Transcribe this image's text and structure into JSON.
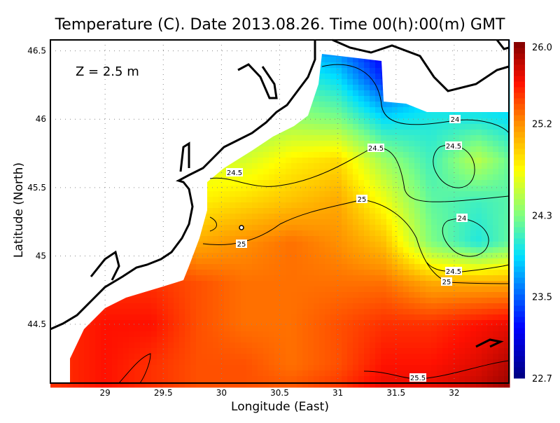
{
  "chart_data": {
    "type": "heatmap",
    "title": "Temperature (C). Date 2013.08.26. Time 00(h):00(m) GMT",
    "annotation": "Z = 2.5 m",
    "xlabel": "Longitude (East)",
    "ylabel": "Latitude (North)",
    "xlim": [
      28.53,
      32.47
    ],
    "ylim": [
      44.07,
      46.58
    ],
    "xticks": [
      29,
      29.5,
      30,
      30.5,
      31,
      31.5,
      32
    ],
    "xtick_labels": [
      "29",
      "29.5",
      "30",
      "30.5",
      "31",
      "31.5",
      "32"
    ],
    "yticks": [
      44.5,
      45,
      45.5,
      46,
      46.5
    ],
    "ytick_labels": [
      "44.5",
      "45",
      "45.5",
      "46",
      "46.5"
    ],
    "grid": true,
    "colorbar": {
      "min": 22.7,
      "max": 26.0,
      "tick_labels": [
        "26.0",
        "25.2",
        "24.3",
        "23.5",
        "22.7"
      ],
      "ticks": [
        26.0,
        25.2,
        24.3,
        23.5,
        22.7
      ],
      "stops": [
        [
          22.7,
          "#00007f"
        ],
        [
          23.2,
          "#0000ff"
        ],
        [
          23.9,
          "#00e0ff"
        ],
        [
          24.3,
          "#80ff80"
        ],
        [
          24.75,
          "#ffff00"
        ],
        [
          25.2,
          "#ff9000"
        ],
        [
          25.6,
          "#ff1000"
        ],
        [
          26.0,
          "#7f0000"
        ]
      ]
    },
    "grid_lons": [
      28.6,
      29.0,
      29.4,
      29.8,
      30.2,
      30.6,
      31.0,
      31.4,
      31.8,
      32.2,
      32.6
    ],
    "grid_lats": [
      44.0,
      44.2,
      44.5,
      44.8,
      45.1,
      45.4,
      45.7,
      46.0,
      46.3,
      46.6
    ],
    "values": [
      [
        25.5,
        25.6,
        25.5,
        25.4,
        25.4,
        25.4,
        25.5,
        25.7,
        25.7,
        25.8,
        26.0
      ],
      [
        25.5,
        25.6,
        25.5,
        25.4,
        25.4,
        25.3,
        25.4,
        25.6,
        25.6,
        25.7,
        25.9
      ],
      [
        25.5,
        25.6,
        25.6,
        25.4,
        25.3,
        25.3,
        25.4,
        25.5,
        25.5,
        25.6,
        25.7
      ],
      [
        25.4,
        25.5,
        25.5,
        25.4,
        25.3,
        25.3,
        25.3,
        25.3,
        25.1,
        25.1,
        25.1
      ],
      [
        25.2,
        25.3,
        25.3,
        25.1,
        25.2,
        25.3,
        25.2,
        25.0,
        24.3,
        24.0,
        24.3
      ],
      [
        24.9,
        24.9,
        24.8,
        24.8,
        24.9,
        25.0,
        25.1,
        24.7,
        24.2,
        24.1,
        24.2
      ],
      [
        24.6,
        24.6,
        24.6,
        24.6,
        24.6,
        24.8,
        24.9,
        24.4,
        24.1,
        24.5,
        24.1
      ],
      [
        24.3,
        24.3,
        24.3,
        24.3,
        24.3,
        24.4,
        24.3,
        23.9,
        24.0,
        24.0,
        23.9
      ],
      [
        24.0,
        24.0,
        24.0,
        24.0,
        24.0,
        24.1,
        23.9,
        23.3,
        23.8,
        23.8,
        23.8
      ],
      [
        23.6,
        23.6,
        23.6,
        23.6,
        23.6,
        23.6,
        23.5,
        23.0,
        23.5,
        23.5,
        23.5
      ]
    ],
    "contour_labels": [
      "24.5",
      "24.5",
      "24",
      "24.5",
      "24",
      "25",
      "25",
      "24.5",
      "25",
      "25.5"
    ]
  }
}
